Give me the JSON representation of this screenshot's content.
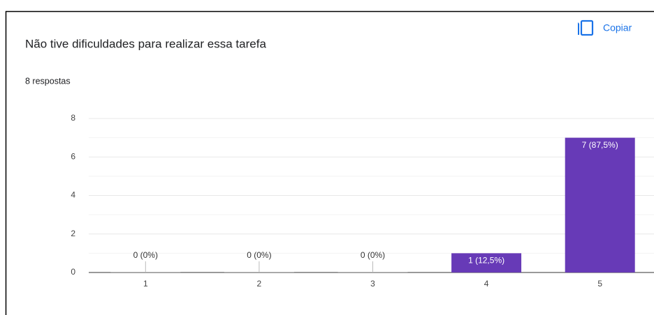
{
  "chart_data": {
    "type": "bar",
    "title": "Não tive dificuldades para realizar essa tarefa",
    "subtitle": "8 respostas",
    "button": "Copiar",
    "categories": [
      "1",
      "2",
      "3",
      "4",
      "5"
    ],
    "values": [
      0,
      0,
      0,
      1,
      7
    ],
    "value_labels": [
      "0 (0%)",
      "0 (0%)",
      "0 (0%)",
      "1 (12,5%)",
      "7 (87,5%)"
    ],
    "color": "#673ab7",
    "ylim": [
      0,
      8
    ],
    "yticks": [
      0,
      2,
      4,
      6,
      8
    ],
    "grid": true
  }
}
